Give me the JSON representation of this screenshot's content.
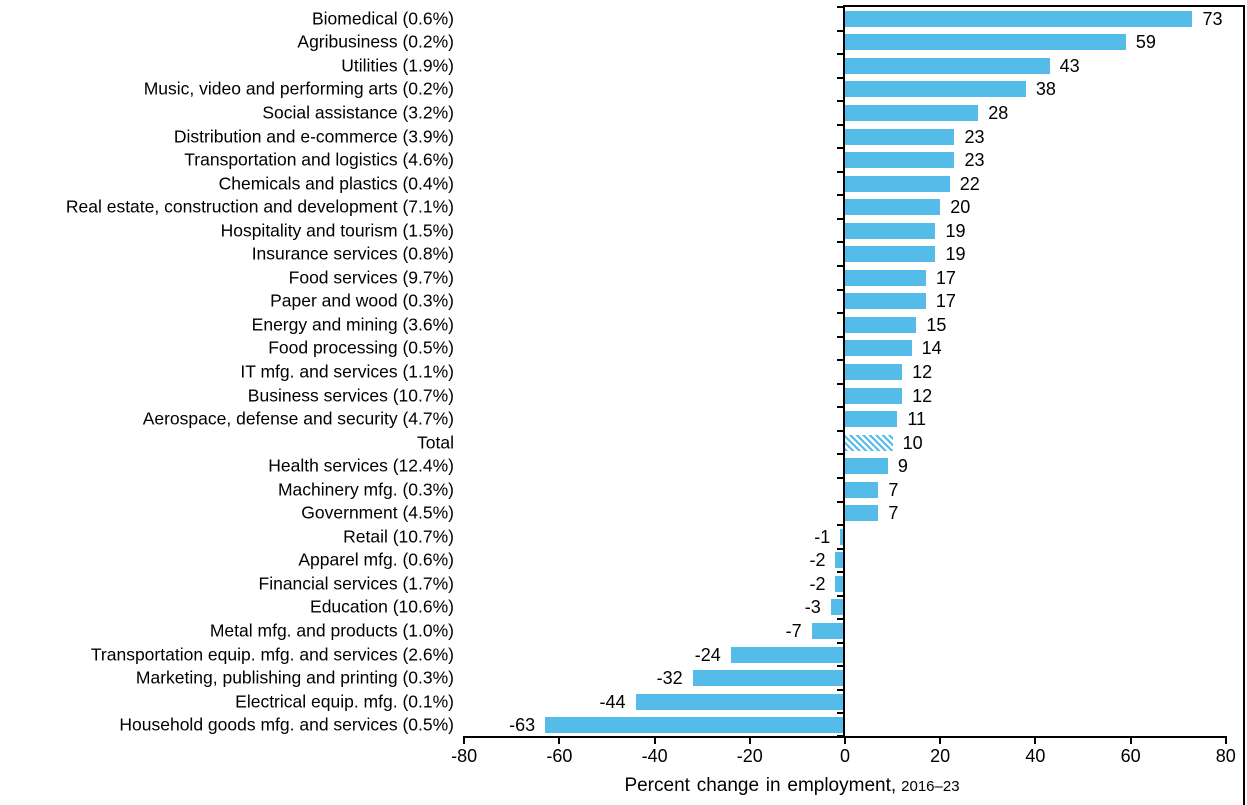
{
  "chart_data": {
    "type": "bar",
    "orientation": "horizontal",
    "xlabel": "Percent change in employment,",
    "xlabel_note": "2016–23",
    "xlim": [
      -80,
      80
    ],
    "x_ticks": [
      -80,
      -60,
      -40,
      -20,
      0,
      20,
      40,
      60,
      80
    ],
    "grid": false,
    "value_labels": true,
    "bar_color": "#55BBE9",
    "axis_color": "#000000",
    "text_color": "#000000",
    "hatched_index": 18,
    "categories": [
      "Biomedical (0.6%)",
      "Agribusiness (0.2%)",
      "Utilities (1.9%)",
      "Music, video and performing arts (0.2%)",
      "Social assistance (3.2%)",
      "Distribution and e-commerce (3.9%)",
      "Transportation and logistics (4.6%)",
      "Chemicals and plastics (0.4%)",
      "Real estate, construction and development (7.1%)",
      "Hospitality and tourism (1.5%)",
      "Insurance services (0.8%)",
      "Food services (9.7%)",
      "Paper and wood (0.3%)",
      "Energy and mining (3.6%)",
      "Food processing (0.5%)",
      "IT mfg. and services (1.1%)",
      "Business services (10.7%)",
      "Aerospace, defense and security (4.7%)",
      "Total",
      "Health services (12.4%)",
      "Machinery mfg. (0.3%)",
      "Government (4.5%)",
      "Retail (10.7%)",
      "Apparel mfg. (0.6%)",
      "Financial services (1.7%)",
      "Education (10.6%)",
      "Metal mfg. and products (1.0%)",
      "Transportation equip. mfg. and services (2.6%)",
      "Marketing, publishing and printing (0.3%)",
      "Electrical equip. mfg. (0.1%)",
      "Household goods mfg. and services (0.5%)"
    ],
    "values": [
      73,
      59,
      43,
      38,
      28,
      23,
      23,
      22,
      20,
      19,
      19,
      17,
      17,
      15,
      14,
      12,
      12,
      11,
      10,
      9,
      7,
      7,
      -1,
      -2,
      -2,
      -3,
      -7,
      -24,
      -32,
      -44,
      -63
    ]
  }
}
